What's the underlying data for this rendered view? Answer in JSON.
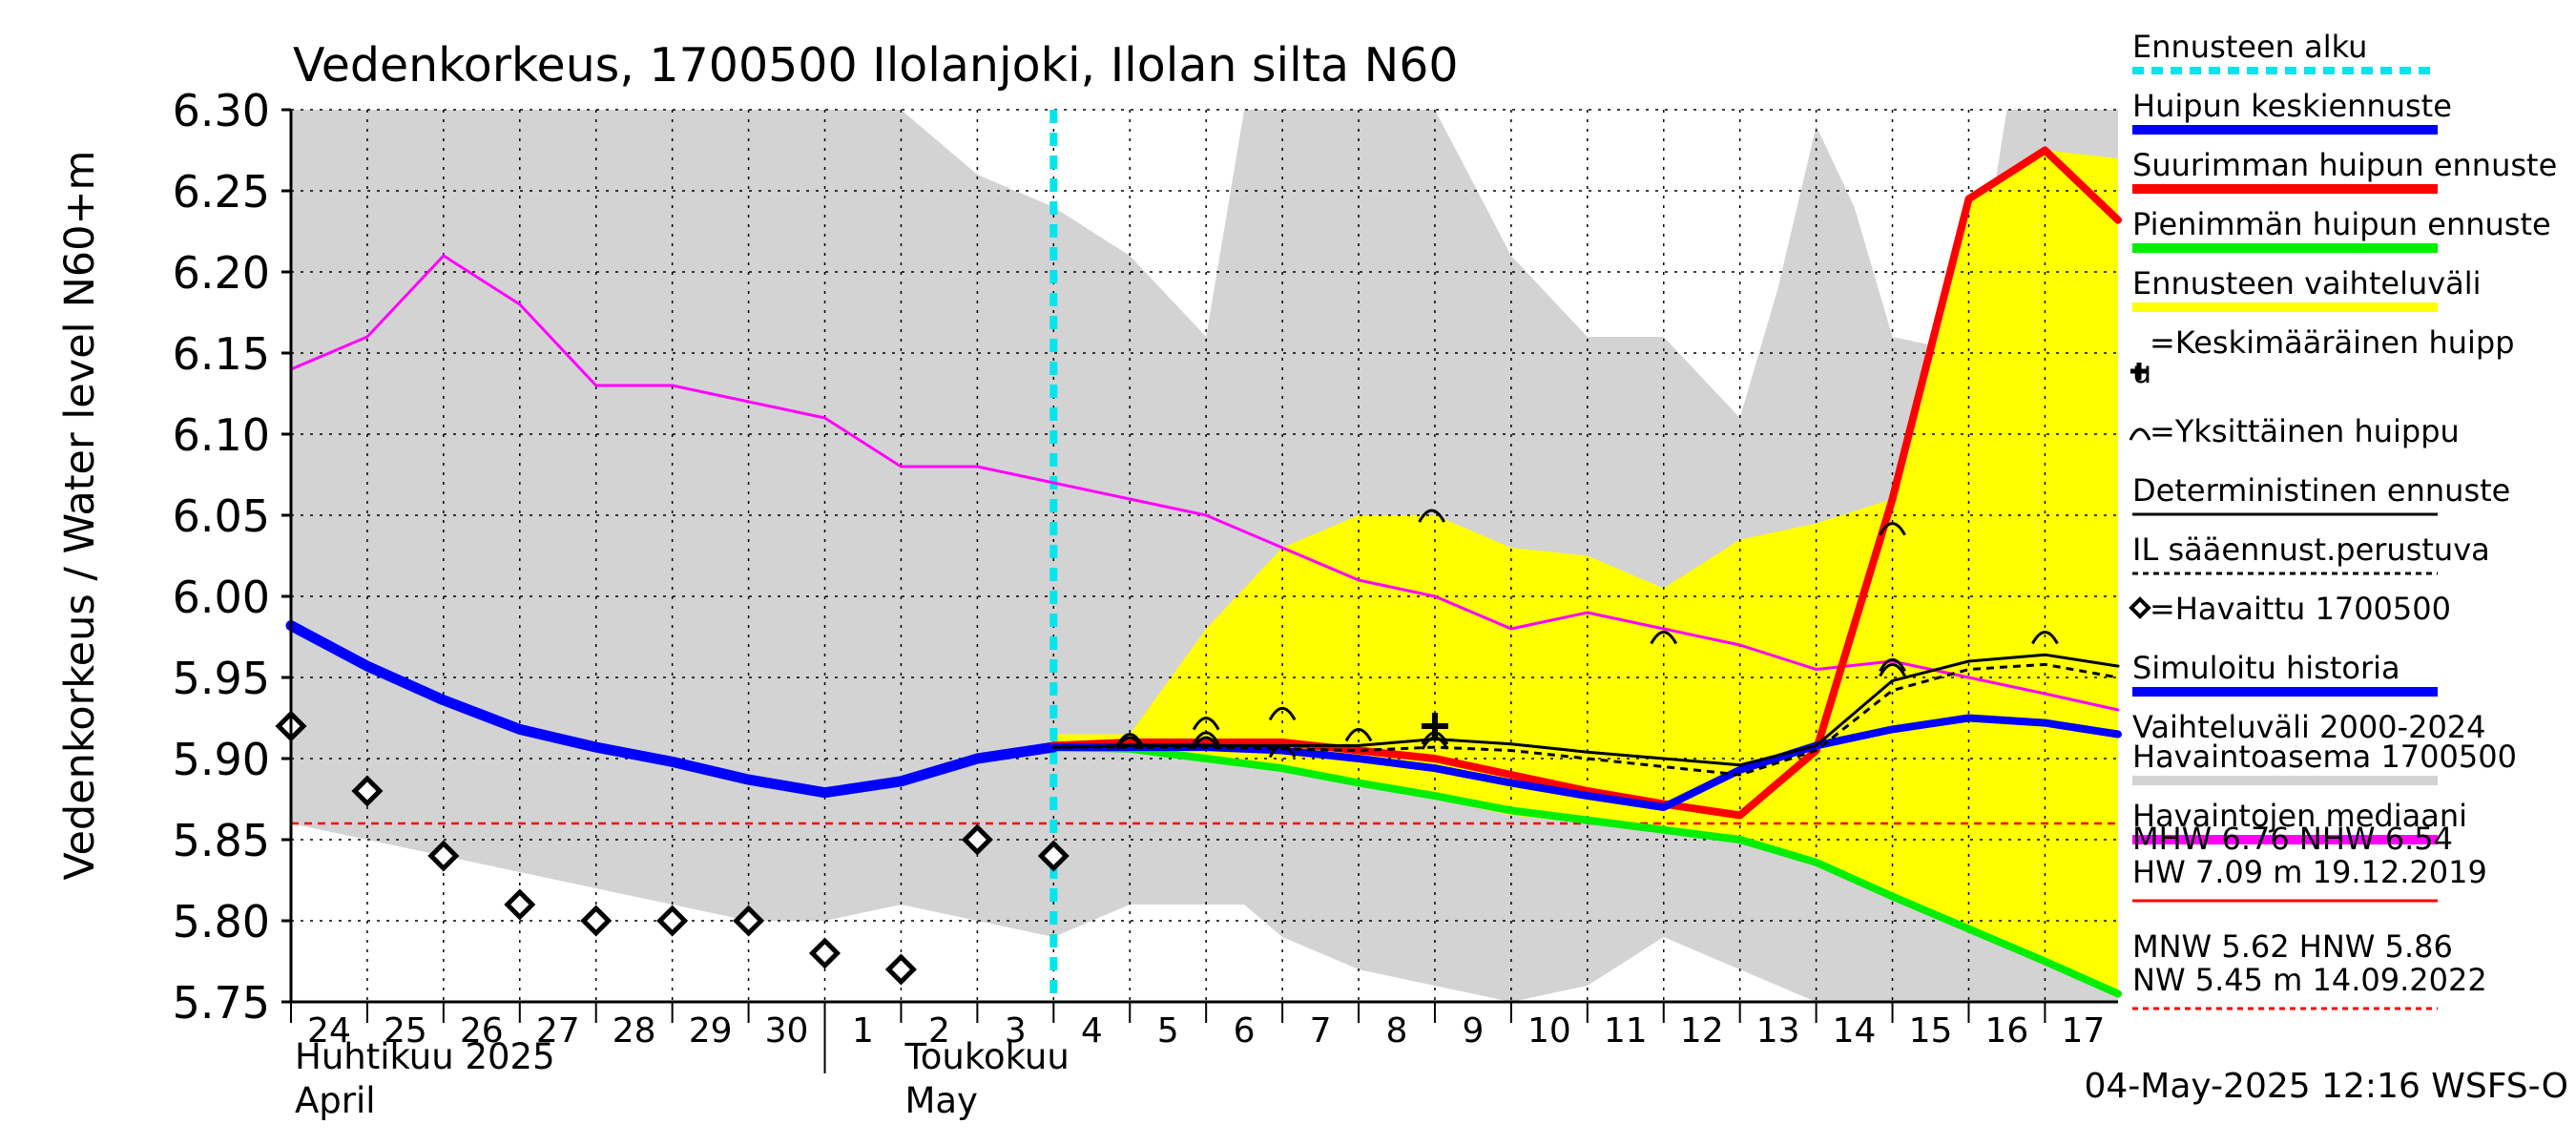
{
  "chart_data": {
    "type": "line",
    "title": "Vedenkorkeus, 1700500 Ilolanjoki, Ilolan silta N60",
    "ylabel": "Vedenkorkeus / Water level",
    "ylabel_unit": "N60+m",
    "ylim": [
      5.75,
      6.3
    ],
    "yticks": [
      "6.30",
      "6.25",
      "6.20",
      "6.15",
      "6.10",
      "6.05",
      "6.00",
      "5.95",
      "5.90",
      "5.85",
      "5.80",
      "5.75"
    ],
    "xlim": [
      "2025-04-24",
      "2025-05-17T23:00"
    ],
    "xtick_labels": [
      {
        "date": "2025-04-24",
        "label": "24"
      },
      {
        "date": "2025-04-25",
        "label": "25"
      },
      {
        "date": "2025-04-26",
        "label": "26"
      },
      {
        "date": "2025-04-27",
        "label": "27"
      },
      {
        "date": "2025-04-28",
        "label": "28"
      },
      {
        "date": "2025-04-29",
        "label": "29"
      },
      {
        "date": "2025-04-30",
        "label": "30"
      },
      {
        "date": "2025-05-01",
        "label": "1"
      },
      {
        "date": "2025-05-02",
        "label": "2"
      },
      {
        "date": "2025-05-03",
        "label": "3"
      },
      {
        "date": "2025-05-04",
        "label": "4"
      },
      {
        "date": "2025-05-05",
        "label": "5"
      },
      {
        "date": "2025-05-06",
        "label": "6"
      },
      {
        "date": "2025-05-07",
        "label": "7"
      },
      {
        "date": "2025-05-08",
        "label": "8"
      },
      {
        "date": "2025-05-09",
        "label": "9"
      },
      {
        "date": "2025-05-10",
        "label": "10"
      },
      {
        "date": "2025-05-11",
        "label": "11"
      },
      {
        "date": "2025-05-12",
        "label": "12"
      },
      {
        "date": "2025-05-13",
        "label": "13"
      },
      {
        "date": "2025-05-14",
        "label": "14"
      },
      {
        "date": "2025-05-15",
        "label": "15"
      },
      {
        "date": "2025-05-16",
        "label": "16"
      },
      {
        "date": "2025-05-17",
        "label": "17"
      }
    ],
    "month_labels": [
      {
        "date": "2025-04-24",
        "line1": "Huhtikuu  2025",
        "line2": "April"
      },
      {
        "date": "2025-05-02",
        "line1": "Toukokuu",
        "line2": "May"
      }
    ],
    "month_separator": "2025-05-01",
    "grid": true,
    "forecast_start": "2025-05-04T00:00",
    "hline_red": 5.86,
    "bands": [
      {
        "name": "Vaihteluväli 2000-2024",
        "color": "#d3d3d3",
        "points": [
          [
            "2025-04-24",
            6.3,
            5.86
          ],
          [
            "2025-04-25",
            6.3,
            5.85
          ],
          [
            "2025-04-26",
            6.3,
            5.84
          ],
          [
            "2025-04-27",
            6.3,
            5.83
          ],
          [
            "2025-04-28",
            6.3,
            5.82
          ],
          [
            "2025-04-29",
            6.3,
            5.81
          ],
          [
            "2025-04-30",
            6.3,
            5.8
          ],
          [
            "2025-05-01",
            6.3,
            5.8
          ],
          [
            "2025-05-02",
            6.3,
            5.81
          ],
          [
            "2025-05-03",
            6.26,
            5.8
          ],
          [
            "2025-05-04",
            6.24,
            5.79
          ],
          [
            "2025-05-05",
            6.21,
            5.81
          ],
          [
            "2025-05-06",
            6.16,
            5.81
          ],
          [
            "2025-05-06T12:00",
            6.3,
            5.81
          ],
          [
            "2025-05-07",
            6.3,
            5.79
          ],
          [
            "2025-05-08",
            6.3,
            5.77
          ],
          [
            "2025-05-09",
            6.3,
            5.76
          ],
          [
            "2025-05-10",
            6.21,
            5.75
          ],
          [
            "2025-05-11",
            6.16,
            5.76
          ],
          [
            "2025-05-12",
            6.16,
            5.79
          ],
          [
            "2025-05-13",
            6.11,
            5.77
          ],
          [
            "2025-05-13T12:00",
            6.19,
            5.76
          ],
          [
            "2025-05-14",
            6.29,
            5.75
          ],
          [
            "2025-05-14T12:00",
            6.24,
            5.75
          ],
          [
            "2025-05-15",
            6.16,
            5.75
          ],
          [
            "2025-05-16",
            6.15,
            5.75
          ],
          [
            "2025-05-16T12:00",
            6.3,
            5.75
          ],
          [
            "2025-05-17T23:00",
            6.3,
            5.75
          ]
        ]
      },
      {
        "name": "Ennusteen vaihteluväli",
        "color": "#ffff00",
        "points": [
          [
            "2025-05-04",
            5.915,
            5.905
          ],
          [
            "2025-05-05",
            5.915,
            5.905
          ],
          [
            "2025-05-06",
            5.98,
            5.9
          ],
          [
            "2025-05-07",
            6.03,
            5.895
          ],
          [
            "2025-05-08",
            6.05,
            5.885
          ],
          [
            "2025-05-09",
            6.05,
            5.875
          ],
          [
            "2025-05-10",
            6.03,
            5.865
          ],
          [
            "2025-05-11",
            6.025,
            5.86
          ],
          [
            "2025-05-12",
            6.005,
            5.855
          ],
          [
            "2025-05-13",
            6.035,
            5.85
          ],
          [
            "2025-05-14",
            6.045,
            5.835
          ],
          [
            "2025-05-15",
            6.06,
            5.815
          ],
          [
            "2025-05-16",
            6.245,
            5.795
          ],
          [
            "2025-05-17",
            6.275,
            5.775
          ],
          [
            "2025-05-17T23:00",
            6.27,
            5.755
          ]
        ]
      }
    ],
    "series": [
      {
        "name": "Havaintojen mediaani",
        "color": "#ff00ff",
        "width": 3,
        "x": [
          "2025-04-24",
          "2025-04-25",
          "2025-04-26",
          "2025-04-27",
          "2025-04-28",
          "2025-04-29",
          "2025-04-30",
          "2025-05-01",
          "2025-05-02",
          "2025-05-03",
          "2025-05-04",
          "2025-05-05",
          "2025-05-06",
          "2025-05-07",
          "2025-05-08",
          "2025-05-09",
          "2025-05-10",
          "2025-05-11",
          "2025-05-12",
          "2025-05-13",
          "2025-05-14",
          "2025-05-15",
          "2025-05-16",
          "2025-05-17",
          "2025-05-17T23:00"
        ],
        "values": [
          6.14,
          6.16,
          6.21,
          6.18,
          6.13,
          6.13,
          6.12,
          6.11,
          6.08,
          6.08,
          6.07,
          6.06,
          6.05,
          6.03,
          6.01,
          6.0,
          5.98,
          5.99,
          5.98,
          5.97,
          5.955,
          5.96,
          5.95,
          5.94,
          5.93
        ]
      },
      {
        "name": "Simuloitu historia",
        "color": "#0000ff",
        "width": 11,
        "x": [
          "2025-04-24",
          "2025-04-25",
          "2025-04-26",
          "2025-04-27",
          "2025-04-28",
          "2025-04-29",
          "2025-04-30",
          "2025-05-01",
          "2025-05-02",
          "2025-05-03",
          "2025-05-04"
        ],
        "values": [
          5.982,
          5.957,
          5.936,
          5.918,
          5.907,
          5.898,
          5.887,
          5.879,
          5.886,
          5.9,
          5.907
        ]
      },
      {
        "name": "Pienimmän huipun ennuste",
        "color": "#00ee00",
        "width": 8,
        "x": [
          "2025-05-04",
          "2025-05-05",
          "2025-05-06",
          "2025-05-07",
          "2025-05-08",
          "2025-05-09",
          "2025-05-10",
          "2025-05-11",
          "2025-05-12",
          "2025-05-13",
          "2025-05-14",
          "2025-05-15",
          "2025-05-16",
          "2025-05-17",
          "2025-05-17T23:00"
        ],
        "values": [
          5.907,
          5.906,
          5.9,
          5.894,
          5.885,
          5.877,
          5.868,
          5.862,
          5.856,
          5.85,
          5.836,
          5.815,
          5.795,
          5.775,
          5.755
        ]
      },
      {
        "name": "Suurimman huipun ennuste",
        "color": "#ff0000",
        "width": 8,
        "x": [
          "2025-05-04",
          "2025-05-05",
          "2025-05-06",
          "2025-05-07",
          "2025-05-08",
          "2025-05-09",
          "2025-05-10",
          "2025-05-11",
          "2025-05-12",
          "2025-05-13",
          "2025-05-14",
          "2025-05-15",
          "2025-05-16",
          "2025-05-17",
          "2025-05-17T23:00"
        ],
        "values": [
          5.908,
          5.91,
          5.91,
          5.91,
          5.905,
          5.9,
          5.89,
          5.88,
          5.872,
          5.865,
          5.905,
          6.06,
          6.245,
          6.275,
          6.232
        ]
      },
      {
        "name": "Huipun keskiennuste",
        "color": "#0000ff",
        "width": 8,
        "x": [
          "2025-05-04",
          "2025-05-05",
          "2025-05-06",
          "2025-05-07",
          "2025-05-08",
          "2025-05-09",
          "2025-05-10",
          "2025-05-11",
          "2025-05-12",
          "2025-05-13",
          "2025-05-14",
          "2025-05-15",
          "2025-05-16",
          "2025-05-17",
          "2025-05-17T23:00"
        ],
        "values": [
          5.907,
          5.907,
          5.907,
          5.905,
          5.9,
          5.894,
          5.885,
          5.877,
          5.87,
          5.893,
          5.908,
          5.918,
          5.925,
          5.922,
          5.915
        ]
      },
      {
        "name": "Deterministinen ennuste",
        "color": "#000000",
        "width": 3,
        "x": [
          "2025-05-04",
          "2025-05-05",
          "2025-05-06",
          "2025-05-07",
          "2025-05-08",
          "2025-05-09",
          "2025-05-10",
          "2025-05-11",
          "2025-05-12",
          "2025-05-13",
          "2025-05-14",
          "2025-05-15",
          "2025-05-16",
          "2025-05-17",
          "2025-05-17T23:00"
        ],
        "values": [
          5.907,
          5.908,
          5.908,
          5.908,
          5.908,
          5.912,
          5.909,
          5.904,
          5.9,
          5.896,
          5.908,
          5.948,
          5.96,
          5.964,
          5.957
        ]
      },
      {
        "name": "IL sääennust.perustuva",
        "color": "#000000",
        "width": 3,
        "dash": "8,6",
        "x": [
          "2025-05-04",
          "2025-05-05",
          "2025-05-06",
          "2025-05-07",
          "2025-05-08",
          "2025-05-09",
          "2025-05-10",
          "2025-05-11",
          "2025-05-12",
          "2025-05-13",
          "2025-05-14",
          "2025-05-15",
          "2025-05-16",
          "2025-05-17",
          "2025-05-17T23:00"
        ],
        "values": [
          5.907,
          5.907,
          5.907,
          5.906,
          5.905,
          5.907,
          5.905,
          5.9,
          5.895,
          5.89,
          5.905,
          5.942,
          5.955,
          5.958,
          5.95
        ]
      }
    ],
    "observed": {
      "name": "Havaittu 1700500",
      "x": [
        "2025-04-24",
        "2025-04-25",
        "2025-04-26",
        "2025-04-27",
        "2025-04-28",
        "2025-04-29",
        "2025-04-30",
        "2025-05-01",
        "2025-05-02",
        "2025-05-03",
        "2025-05-04"
      ],
      "values": [
        5.92,
        5.88,
        5.84,
        5.81,
        5.8,
        5.8,
        5.8,
        5.78,
        5.77,
        5.85,
        5.84
      ]
    },
    "individual_peaks": {
      "name": "Yksittäinen huippu",
      "points": [
        [
          "2025-05-05",
          5.91
        ],
        [
          "2025-05-05",
          5.912
        ],
        [
          "2025-05-06",
          5.91
        ],
        [
          "2025-05-06",
          5.913
        ],
        [
          "2025-05-06",
          5.922
        ],
        [
          "2025-05-07",
          5.905
        ],
        [
          "2025-05-07",
          5.928
        ],
        [
          "2025-05-08",
          5.915
        ],
        [
          "2025-05-08T23:00",
          6.05
        ],
        [
          "2025-05-09",
          5.91
        ],
        [
          "2025-05-09",
          5.913
        ],
        [
          "2025-05-12",
          5.975
        ],
        [
          "2025-05-15",
          5.955
        ],
        [
          "2025-05-15",
          5.958
        ],
        [
          "2025-05-15",
          6.042
        ],
        [
          "2025-05-17",
          5.975
        ]
      ]
    },
    "mean_peak": {
      "name": "Keskimääräinen huippu",
      "x": "2025-05-09",
      "value": 5.92
    },
    "legend": {
      "placement": "right",
      "items": [
        {
          "label": "Ennusteen alku",
          "style": "dash",
          "color": "#00e5ee"
        },
        {
          "label": "Huipun keskiennuste",
          "style": "line",
          "color": "#0000ff"
        },
        {
          "label": "Suurimman huipun ennuste",
          "style": "line",
          "color": "#ff0000"
        },
        {
          "label": "Pienimmän huipun ennuste",
          "style": "line",
          "color": "#00ee00"
        },
        {
          "label": "Ennusteen vaihteluväli",
          "style": "line",
          "color": "#ffff00"
        },
        {
          "label": "=Keskimääräinen huipp",
          "label2": "u",
          "style": "plus"
        },
        {
          "label": "=Yksittäinen huippu",
          "style": "arc"
        },
        {
          "label": "Deterministinen ennuste",
          "style": "line-thin",
          "color": "#000000"
        },
        {
          "label": "IL sääennust.perustuva",
          "style": "dotted",
          "color": "#000000"
        },
        {
          "label": "=Havaittu 1700500",
          "style": "diamond"
        },
        {
          "label": "Simuloitu historia",
          "style": "line",
          "color": "#0000ff"
        },
        {
          "label": "Vaihteluväli 2000-2024",
          "style": "none"
        },
        {
          "label": " Havaintoasema 1700500",
          "style": "line",
          "color": "#d3d3d3"
        },
        {
          "label": "Havaintojen mediaani",
          "style": "line",
          "color": "#ff00ff"
        }
      ]
    },
    "stats": [
      {
        "text": "MHW   6.76 NHW   6.54"
      },
      {
        "text": "HW   7.09 m 19.12.2019",
        "underline": "#ff0000"
      },
      {
        "text": "MNW   5.62 HNW   5.86"
      },
      {
        "text": "NW   5.45 m 14.09.2022",
        "underline": "#ff0000",
        "dashed": true
      }
    ],
    "footer": "04-May-2025 12:16 WSFS-O"
  }
}
